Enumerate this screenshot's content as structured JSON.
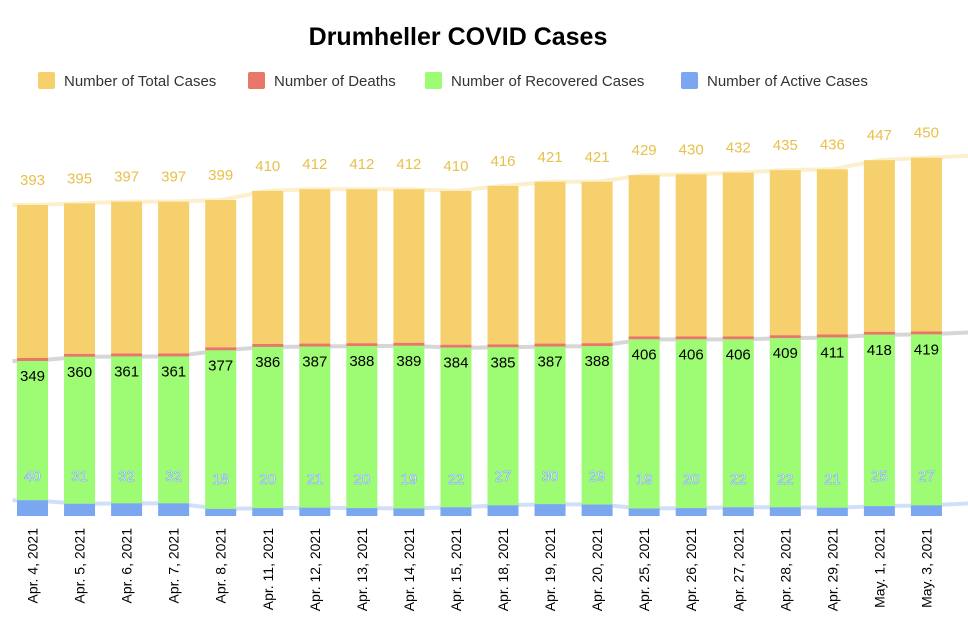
{
  "chart_data": {
    "type": "bar",
    "title": "Drumheller COVID Cases",
    "xlabel": "",
    "ylabel": "",
    "legend_position": "top",
    "categories": [
      "Apr. 4, 2021",
      "Apr. 5, 2021",
      "Apr. 6, 2021",
      "Apr. 7, 2021",
      "Apr. 8, 2021",
      "Apr. 11, 2021",
      "Apr. 12, 2021",
      "Apr. 13, 2021",
      "Apr. 14, 2021",
      "Apr. 15, 2021",
      "Apr. 18, 2021",
      "Apr. 19, 2021",
      "Apr. 20, 2021",
      "Apr. 25, 2021",
      "Apr. 26, 2021",
      "Apr. 27, 2021",
      "Apr. 28, 2021",
      "Apr. 29, 2021",
      "May. 1, 2021",
      "May. 3, 2021"
    ],
    "series": [
      {
        "name": "Number of Total Cases",
        "color": "#f7d06e",
        "values": [
          393,
          395,
          397,
          397,
          399,
          410,
          412,
          412,
          412,
          410,
          416,
          421,
          421,
          429,
          430,
          432,
          435,
          436,
          447,
          450
        ]
      },
      {
        "name": "Number of Deaths",
        "color": "#e8776a",
        "values": [
          4,
          4,
          4,
          4,
          4,
          4,
          4,
          4,
          4,
          4,
          4,
          4,
          4,
          4,
          4,
          4,
          4,
          4,
          4,
          4
        ]
      },
      {
        "name": "Number of Recovered Cases",
        "color": "#9efb74",
        "values": [
          349,
          360,
          361,
          361,
          377,
          386,
          387,
          388,
          389,
          384,
          385,
          387,
          388,
          406,
          406,
          406,
          409,
          411,
          418,
          419
        ]
      },
      {
        "name": "Number of Active Cases",
        "color": "#7ba7f0",
        "values": [
          40,
          31,
          32,
          32,
          18,
          20,
          21,
          20,
          19,
          22,
          27,
          30,
          29,
          19,
          20,
          22,
          22,
          21,
          25,
          27
        ]
      }
    ],
    "grid": false
  }
}
